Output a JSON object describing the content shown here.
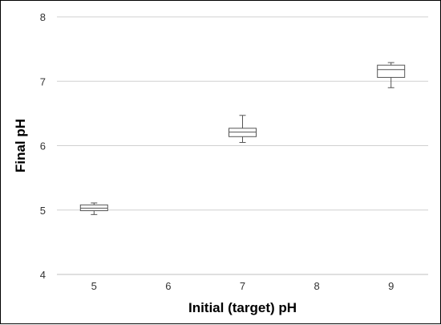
{
  "chart_data": {
    "type": "boxplot",
    "title": "",
    "xlabel": "Initial (target) pH",
    "ylabel": "Final pH",
    "x_ticks": [
      "5",
      "6",
      "7",
      "8",
      "9"
    ],
    "y_ticks": [
      "4",
      "5",
      "6",
      "7",
      "8"
    ],
    "xlim": [
      4.5,
      9.5
    ],
    "ylim": [
      4,
      8
    ],
    "grid": "horizontal",
    "legend": "none",
    "series": [
      {
        "boxes": [
          {
            "x": 5,
            "min": 4.93,
            "q1": 4.99,
            "median": 5.03,
            "q3": 5.08,
            "max": 5.11
          },
          {
            "x": 7,
            "min": 6.05,
            "q1": 6.14,
            "median": 6.21,
            "q3": 6.27,
            "max": 6.47
          },
          {
            "x": 9,
            "min": 6.9,
            "q1": 7.06,
            "median": 7.18,
            "q3": 7.25,
            "max": 7.29
          }
        ]
      }
    ]
  }
}
